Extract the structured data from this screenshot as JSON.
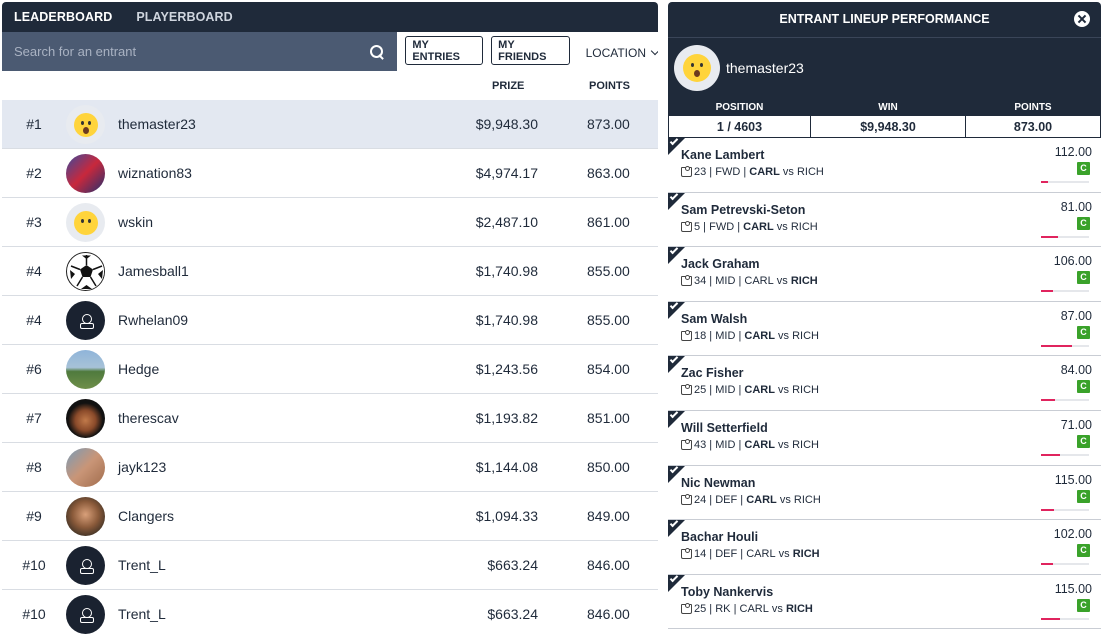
{
  "leaderboard": {
    "tabs": [
      "LEADERBOARD",
      "PLAYERBOARD"
    ],
    "search_placeholder": "Search for an entrant",
    "buttons": {
      "my_entries": "MY ENTRIES",
      "my_friends": "MY FRIENDS",
      "location": "LOCATION"
    },
    "columns": {
      "prize": "PRIZE",
      "points": "POINTS"
    },
    "rows": [
      {
        "rank": "#1",
        "name": "themaster23",
        "prize": "$9,948.30",
        "points": "873.00",
        "avatar": "emoji-surprised"
      },
      {
        "rank": "#2",
        "name": "wiznation83",
        "prize": "$4,974.17",
        "points": "863.00",
        "avatar": "photo"
      },
      {
        "rank": "#3",
        "name": "wskin",
        "prize": "$2,487.10",
        "points": "861.00",
        "avatar": "emoji-neutral"
      },
      {
        "rank": "#4",
        "name": "Jamesball1",
        "prize": "$1,740.98",
        "points": "855.00",
        "avatar": "soccer-ball"
      },
      {
        "rank": "#4",
        "name": "Rwhelan09",
        "prize": "$1,740.98",
        "points": "855.00",
        "avatar": "default-user"
      },
      {
        "rank": "#6",
        "name": "Hedge",
        "prize": "$1,243.56",
        "points": "854.00",
        "avatar": "photo"
      },
      {
        "rank": "#7",
        "name": "therescav",
        "prize": "$1,193.82",
        "points": "851.00",
        "avatar": "photo"
      },
      {
        "rank": "#8",
        "name": "jayk123",
        "prize": "$1,144.08",
        "points": "850.00",
        "avatar": "photo"
      },
      {
        "rank": "#9",
        "name": "Clangers",
        "prize": "$1,094.33",
        "points": "849.00",
        "avatar": "photo"
      },
      {
        "rank": "#10",
        "name": "Trent_L",
        "prize": "$663.24",
        "points": "846.00",
        "avatar": "default-user"
      },
      {
        "rank": "#10",
        "name": "Trent_L",
        "prize": "$663.24",
        "points": "846.00",
        "avatar": "default-user"
      }
    ]
  },
  "lineup": {
    "title": "ENTRANT LINEUP PERFORMANCE",
    "username": "themaster23",
    "stats": [
      {
        "label": "POSITION",
        "value": "1 / 4603"
      },
      {
        "label": "WIN",
        "value": "$9,948.30"
      },
      {
        "label": "POINTS",
        "value": "873.00"
      }
    ],
    "players": [
      {
        "name": "Kane Lambert",
        "number": "23",
        "pos": "FWD",
        "home": "CARL",
        "away": "RICH",
        "bold_team": "CARL",
        "score": "112.00",
        "badge": "C",
        "progress": 0.15
      },
      {
        "name": "Sam Petrevski-Seton",
        "number": "5",
        "pos": "FWD",
        "home": "CARL",
        "away": "RICH",
        "bold_team": "CARL",
        "score": "81.00",
        "badge": "C",
        "progress": 0.35
      },
      {
        "name": "Jack Graham",
        "number": "34",
        "pos": "MID",
        "home": "CARL",
        "away": "RICH",
        "bold_team": "RICH",
        "score": "106.00",
        "badge": "C",
        "progress": 0.25
      },
      {
        "name": "Sam Walsh",
        "number": "18",
        "pos": "MID",
        "home": "CARL",
        "away": "RICH",
        "bold_team": "CARL",
        "score": "87.00",
        "badge": "C",
        "progress": 0.65
      },
      {
        "name": "Zac Fisher",
        "number": "25",
        "pos": "MID",
        "home": "CARL",
        "away": "RICH",
        "bold_team": "CARL",
        "score": "84.00",
        "badge": "C",
        "progress": 0.3
      },
      {
        "name": "Will Setterfield",
        "number": "43",
        "pos": "MID",
        "home": "CARL",
        "away": "RICH",
        "bold_team": "CARL",
        "score": "71.00",
        "badge": "C",
        "progress": 0.4
      },
      {
        "name": "Nic Newman",
        "number": "24",
        "pos": "DEF",
        "home": "CARL",
        "away": "RICH",
        "bold_team": "CARL",
        "score": "115.00",
        "badge": "C",
        "progress": 0.28
      },
      {
        "name": "Bachar Houli",
        "number": "14",
        "pos": "DEF",
        "home": "CARL",
        "away": "RICH",
        "bold_team": "RICH",
        "score": "102.00",
        "badge": "C",
        "progress": 0.25
      },
      {
        "name": "Toby Nankervis",
        "number": "25",
        "pos": "RK",
        "home": "CARL",
        "away": "RICH",
        "bold_team": "RICH",
        "score": "115.00",
        "badge": "C",
        "progress": 0.4
      }
    ]
  },
  "colors": {
    "navy": "#1f2a3a",
    "search_bg": "#4b5a72",
    "highlight_row": "#e3e8f1",
    "captain_green": "#3aa22a",
    "progress_pink": "#e0245e"
  }
}
